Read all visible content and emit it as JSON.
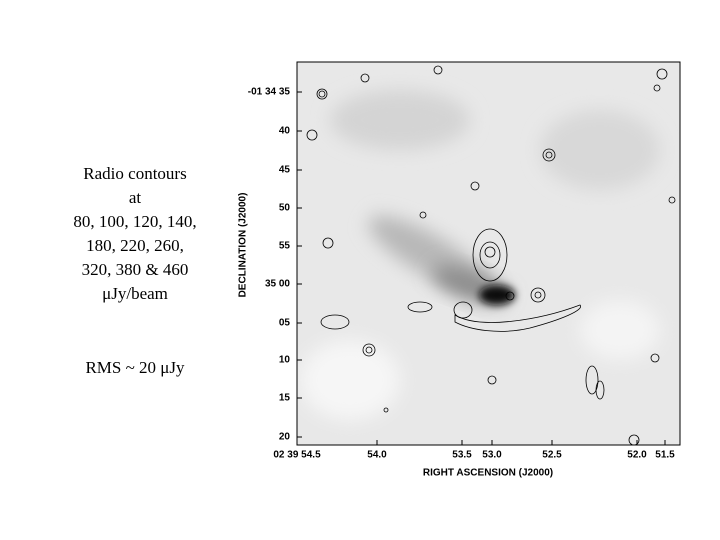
{
  "caption": {
    "lines": [
      "Radio contours",
      "at",
      "80, 100, 120, 140,",
      "180, 220, 260,",
      "320, 380 & 460",
      "μJy/beam"
    ],
    "rms": "RMS ~ 20 μJy"
  },
  "plot": {
    "ylabel": "DECLINATION (J2000)",
    "xlabel": "RIGHT ASCENSION (J2000)",
    "yticks": [
      "-01 34 35",
      "40",
      "45",
      "50",
      "55",
      "35 00",
      "05",
      "10",
      "15",
      "20"
    ],
    "xticks": [
      "02 39 54.5",
      "54.0",
      "53.5",
      "53.0",
      "52.5",
      "52.0",
      "51.5"
    ]
  }
}
